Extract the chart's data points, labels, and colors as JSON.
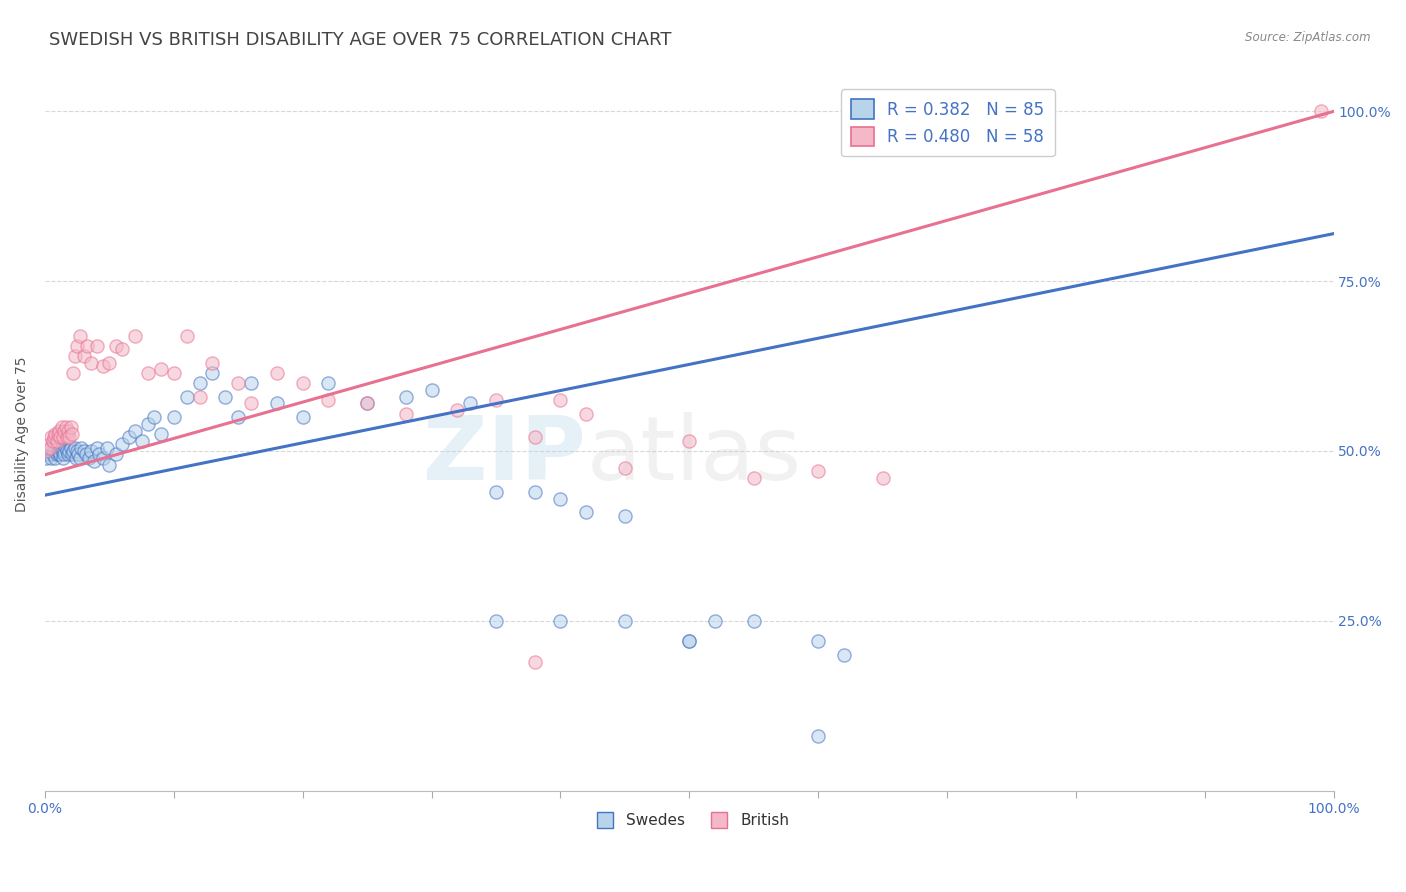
{
  "title": "SWEDISH VS BRITISH DISABILITY AGE OVER 75 CORRELATION CHART",
  "source": "Source: ZipAtlas.com",
  "ylabel": "Disability Age Over 75",
  "legend": {
    "swedes": {
      "R": 0.382,
      "N": 85,
      "color": "#b8d4ea",
      "line_color": "#4472c4"
    },
    "british": {
      "R": 0.48,
      "N": 58,
      "color": "#f4b8c8",
      "line_color": "#e87090"
    }
  },
  "swedes_x": [
    0.001,
    0.002,
    0.003,
    0.004,
    0.005,
    0.005,
    0.006,
    0.006,
    0.007,
    0.007,
    0.008,
    0.008,
    0.009,
    0.009,
    0.01,
    0.01,
    0.011,
    0.011,
    0.012,
    0.012,
    0.013,
    0.013,
    0.014,
    0.015,
    0.015,
    0.016,
    0.017,
    0.018,
    0.019,
    0.02,
    0.021,
    0.022,
    0.023,
    0.024,
    0.025,
    0.026,
    0.027,
    0.028,
    0.03,
    0.032,
    0.034,
    0.036,
    0.038,
    0.04,
    0.042,
    0.045,
    0.048,
    0.05,
    0.055,
    0.06,
    0.065,
    0.07,
    0.075,
    0.08,
    0.085,
    0.09,
    0.1,
    0.11,
    0.12,
    0.13,
    0.14,
    0.15,
    0.16,
    0.18,
    0.2,
    0.22,
    0.25,
    0.28,
    0.3,
    0.33,
    0.35,
    0.38,
    0.4,
    0.42,
    0.45,
    0.5,
    0.52,
    0.55,
    0.6,
    0.62,
    0.35,
    0.4,
    0.45,
    0.5,
    0.6
  ],
  "swedes_y": [
    0.49,
    0.5,
    0.495,
    0.5,
    0.49,
    0.505,
    0.5,
    0.495,
    0.505,
    0.5,
    0.5,
    0.49,
    0.505,
    0.495,
    0.5,
    0.505,
    0.495,
    0.5,
    0.505,
    0.495,
    0.5,
    0.505,
    0.49,
    0.5,
    0.495,
    0.505,
    0.5,
    0.495,
    0.5,
    0.505,
    0.495,
    0.5,
    0.505,
    0.49,
    0.5,
    0.495,
    0.49,
    0.505,
    0.5,
    0.495,
    0.49,
    0.5,
    0.485,
    0.505,
    0.495,
    0.49,
    0.505,
    0.48,
    0.495,
    0.51,
    0.52,
    0.53,
    0.515,
    0.54,
    0.55,
    0.525,
    0.55,
    0.58,
    0.6,
    0.615,
    0.58,
    0.55,
    0.6,
    0.57,
    0.55,
    0.6,
    0.57,
    0.58,
    0.59,
    0.57,
    0.44,
    0.44,
    0.43,
    0.41,
    0.405,
    0.22,
    0.25,
    0.25,
    0.22,
    0.2,
    0.25,
    0.25,
    0.25,
    0.22,
    0.08
  ],
  "british_x": [
    0.001,
    0.003,
    0.004,
    0.005,
    0.006,
    0.007,
    0.008,
    0.009,
    0.01,
    0.011,
    0.012,
    0.013,
    0.014,
    0.015,
    0.016,
    0.017,
    0.018,
    0.019,
    0.02,
    0.021,
    0.022,
    0.023,
    0.025,
    0.027,
    0.03,
    0.033,
    0.036,
    0.04,
    0.045,
    0.05,
    0.055,
    0.06,
    0.07,
    0.08,
    0.09,
    0.1,
    0.11,
    0.12,
    0.13,
    0.15,
    0.16,
    0.18,
    0.2,
    0.22,
    0.25,
    0.28,
    0.32,
    0.35,
    0.38,
    0.4,
    0.42,
    0.45,
    0.5,
    0.55,
    0.6,
    0.65,
    0.99,
    0.38
  ],
  "british_y": [
    0.5,
    0.51,
    0.505,
    0.52,
    0.515,
    0.52,
    0.525,
    0.515,
    0.525,
    0.53,
    0.52,
    0.535,
    0.52,
    0.53,
    0.535,
    0.52,
    0.53,
    0.52,
    0.535,
    0.525,
    0.615,
    0.64,
    0.655,
    0.67,
    0.64,
    0.655,
    0.63,
    0.655,
    0.625,
    0.63,
    0.655,
    0.65,
    0.67,
    0.615,
    0.62,
    0.615,
    0.67,
    0.58,
    0.63,
    0.6,
    0.57,
    0.615,
    0.6,
    0.575,
    0.57,
    0.555,
    0.56,
    0.575,
    0.52,
    0.575,
    0.555,
    0.475,
    0.515,
    0.46,
    0.47,
    0.46,
    1.0,
    0.19
  ],
  "swedes_line": {
    "x0": 0.0,
    "y0": 0.435,
    "x1": 1.0,
    "y1": 0.82
  },
  "british_line": {
    "x0": 0.0,
    "y0": 0.465,
    "x1": 1.0,
    "y1": 1.0
  },
  "watermark_zip": "ZIP",
  "watermark_atlas": "atlas",
  "bg_color": "#ffffff",
  "grid_color": "#d8d8d8",
  "title_color": "#444444",
  "axis_label_color": "#4472c4",
  "scatter_alpha": 0.55,
  "scatter_size": 90,
  "title_fontsize": 13,
  "axis_label_fontsize": 10,
  "right_ytick_labels": [
    "100.0%",
    "75.0%",
    "50.0%",
    "25.0%"
  ],
  "right_ytick_values": [
    1.0,
    0.75,
    0.5,
    0.25
  ],
  "xtick_positions": [
    0.0,
    0.1,
    0.2,
    0.3,
    0.4,
    0.5,
    0.6,
    0.7,
    0.8,
    0.9,
    1.0
  ],
  "ymin": 0.0,
  "ymax": 1.05
}
